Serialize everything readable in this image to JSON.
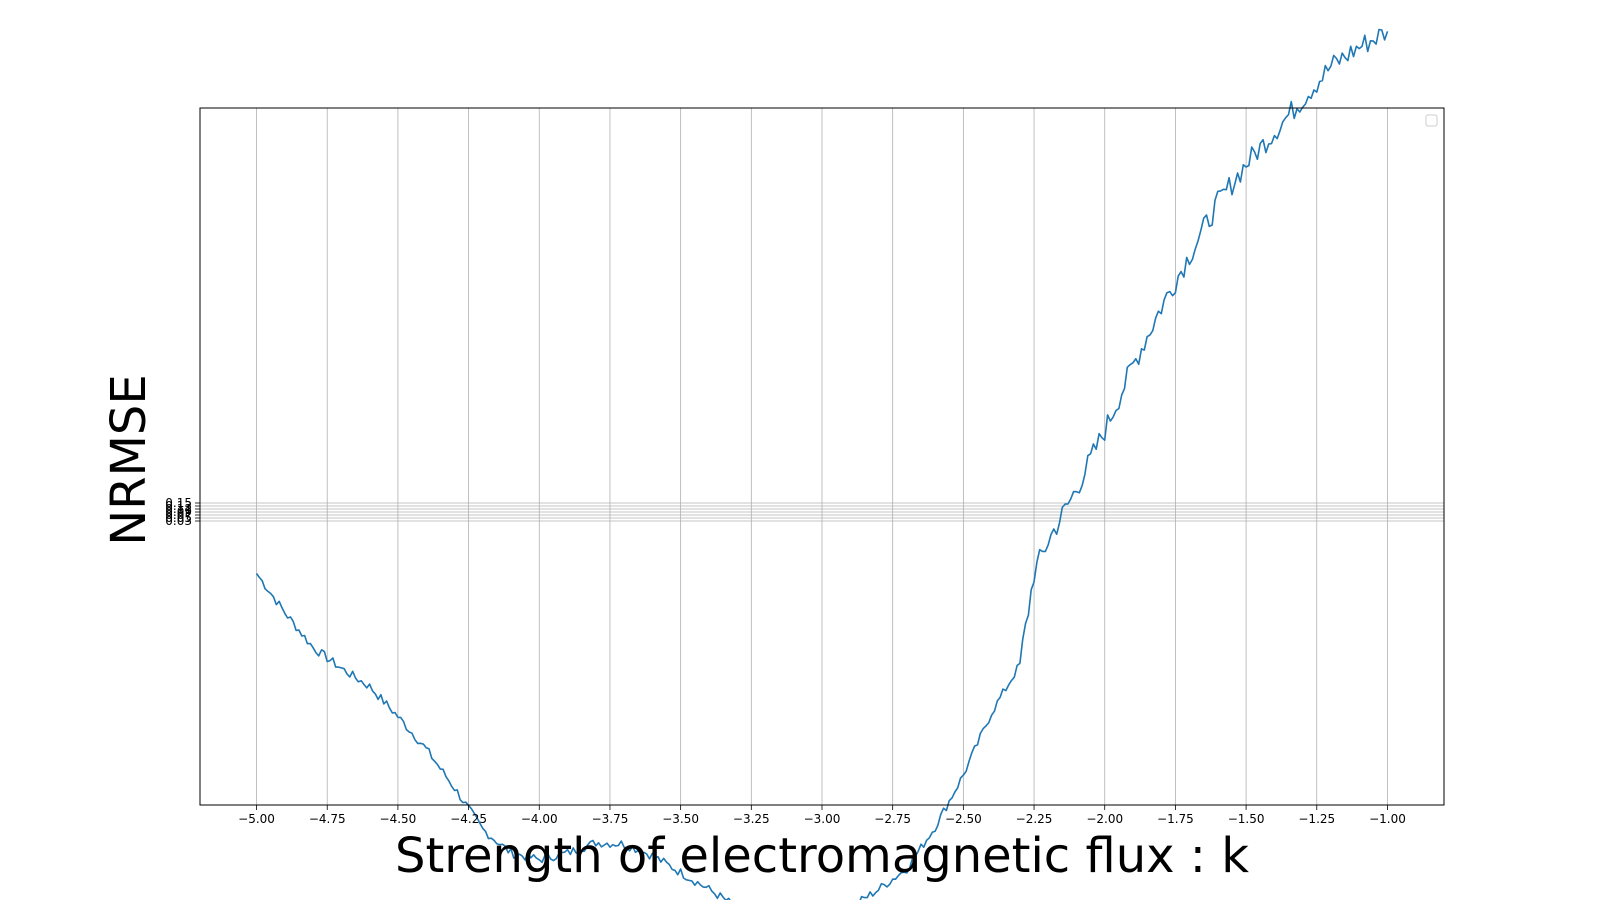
{
  "chart_data": {
    "type": "line",
    "title": "",
    "xlabel": "Strength of electromagnetic flux : k",
    "ylabel": "NRMSE",
    "xlim": [
      -5.2,
      -0.8
    ],
    "x_ticks": [
      -5.0,
      -4.75,
      -4.5,
      -4.25,
      -4.0,
      -3.75,
      -3.5,
      -3.25,
      -3.0,
      -2.75,
      -2.5,
      -2.25,
      -2.0,
      -1.75,
      -1.5,
      -1.25,
      -1.0
    ],
    "x_tick_labels": [
      "−5.00",
      "−4.75",
      "−4.50",
      "−4.25",
      "−4.00",
      "−3.75",
      "−3.50",
      "−3.25",
      "−3.00",
      "−2.75",
      "−2.50",
      "−2.25",
      "−2.00",
      "−1.75",
      "−1.50",
      "−1.25",
      "−1.00"
    ],
    "y_tick_labels": [
      "0.15",
      "0.13",
      "0.11",
      "0.09",
      "0.07",
      "0.05",
      "0.03"
    ],
    "grid": true,
    "legend": "top-right (empty)",
    "series": [
      {
        "color": "#1f77b4",
        "x": [
          -5.0,
          -4.9,
          -4.8,
          -4.7,
          -4.6,
          -4.5,
          -4.4,
          -4.3,
          -4.2,
          -4.1,
          -4.0,
          -3.9,
          -3.8,
          -3.7,
          -3.6,
          -3.5,
          -3.4,
          -3.3,
          -3.2,
          -3.1,
          -3.0,
          -2.9,
          -2.8,
          -2.7,
          -2.6,
          -2.5,
          -2.4,
          -2.3,
          -2.25,
          -2.2,
          -2.1,
          -2.0,
          -1.9,
          -1.8,
          -1.7,
          -1.6,
          -1.5,
          -1.4,
          -1.3,
          -1.2,
          -1.1,
          -1.0
        ],
        "y": [
          0.0955,
          0.0925,
          0.0898,
          0.0882,
          0.0868,
          0.0845,
          0.082,
          0.079,
          0.0758,
          0.074,
          0.0735,
          0.074,
          0.0748,
          0.0747,
          0.0738,
          0.0725,
          0.0712,
          0.0698,
          0.0686,
          0.068,
          0.0682,
          0.0698,
          0.0712,
          0.0728,
          0.076,
          0.08,
          0.0848,
          0.0885,
          0.0955,
          0.098,
          0.102,
          0.1065,
          0.1115,
          0.116,
          0.12,
          0.124,
          0.127,
          0.1295,
          0.132,
          0.1345,
          0.136,
          0.1372
        ]
      }
    ]
  }
}
